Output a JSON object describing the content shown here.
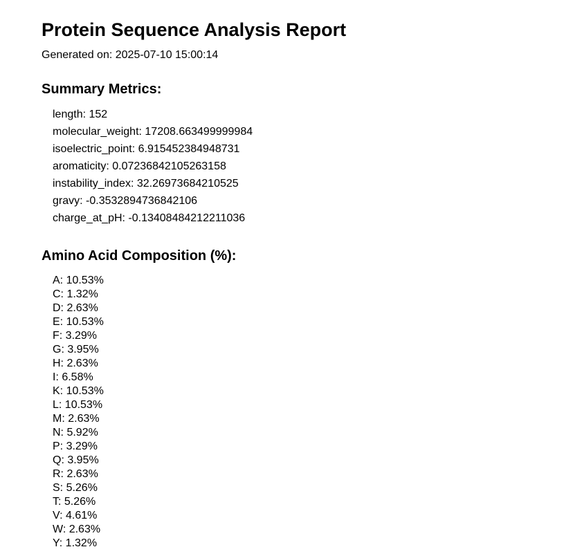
{
  "report": {
    "title": "Protein Sequence Analysis Report",
    "generated": "Generated on: 2025-07-10 15:00:14"
  },
  "summary": {
    "heading": "Summary Metrics:",
    "items": [
      "length: 152",
      "molecular_weight: 17208.663499999984",
      "isoelectric_point: 6.915452384948731",
      "aromaticity: 0.07236842105263158",
      "instability_index: 32.26973684210525",
      "gravy: -0.3532894736842106",
      "charge_at_pH: -0.13408484212211036"
    ]
  },
  "composition": {
    "heading": "Amino Acid Composition (%):",
    "items": [
      "A: 10.53%",
      "C: 1.32%",
      "D: 2.63%",
      "E: 10.53%",
      "F: 3.29%",
      "G: 3.95%",
      "H: 2.63%",
      "I: 6.58%",
      "K: 10.53%",
      "L: 10.53%",
      "M: 2.63%",
      "N: 5.92%",
      "P: 3.29%",
      "Q: 3.95%",
      "R: 2.63%",
      "S: 5.26%",
      "T: 5.26%",
      "V: 4.61%",
      "W: 2.63%",
      "Y: 1.32%"
    ]
  }
}
